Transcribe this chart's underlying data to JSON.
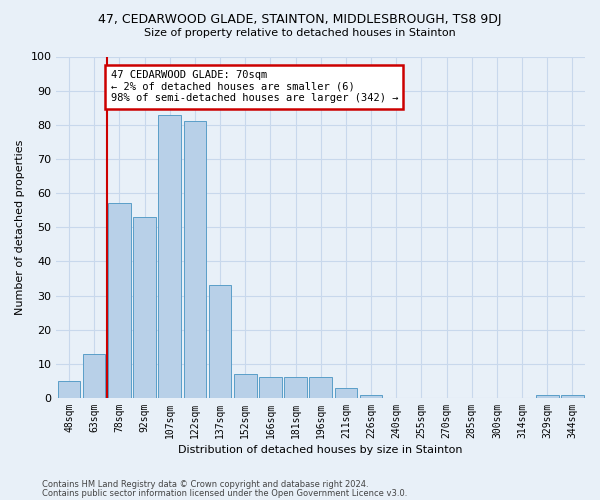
{
  "title": "47, CEDARWOOD GLADE, STAINTON, MIDDLESBROUGH, TS8 9DJ",
  "subtitle": "Size of property relative to detached houses in Stainton",
  "xlabel": "Distribution of detached houses by size in Stainton",
  "ylabel": "Number of detached properties",
  "categories": [
    "48sqm",
    "63sqm",
    "78sqm",
    "92sqm",
    "107sqm",
    "122sqm",
    "137sqm",
    "152sqm",
    "166sqm",
    "181sqm",
    "196sqm",
    "211sqm",
    "226sqm",
    "240sqm",
    "255sqm",
    "270sqm",
    "285sqm",
    "300sqm",
    "314sqm",
    "329sqm",
    "344sqm"
  ],
  "values": [
    5,
    13,
    57,
    53,
    83,
    81,
    33,
    7,
    6,
    6,
    6,
    3,
    1,
    0,
    0,
    0,
    0,
    0,
    0,
    1,
    1
  ],
  "bar_color": "#b8d0e8",
  "bar_edge_color": "#5a9ec8",
  "vline_x": 1.5,
  "vline_color": "#cc0000",
  "annotation_text": "47 CEDARWOOD GLADE: 70sqm\n← 2% of detached houses are smaller (6)\n98% of semi-detached houses are larger (342) →",
  "annotation_box_color": "#ffffff",
  "annotation_box_edge_color": "#cc0000",
  "ylim": [
    0,
    100
  ],
  "yticks": [
    0,
    10,
    20,
    30,
    40,
    50,
    60,
    70,
    80,
    90,
    100
  ],
  "grid_color": "#c8d8ec",
  "bg_color": "#e8f0f8",
  "footer_line1": "Contains HM Land Registry data © Crown copyright and database right 2024.",
  "footer_line2": "Contains public sector information licensed under the Open Government Licence v3.0."
}
